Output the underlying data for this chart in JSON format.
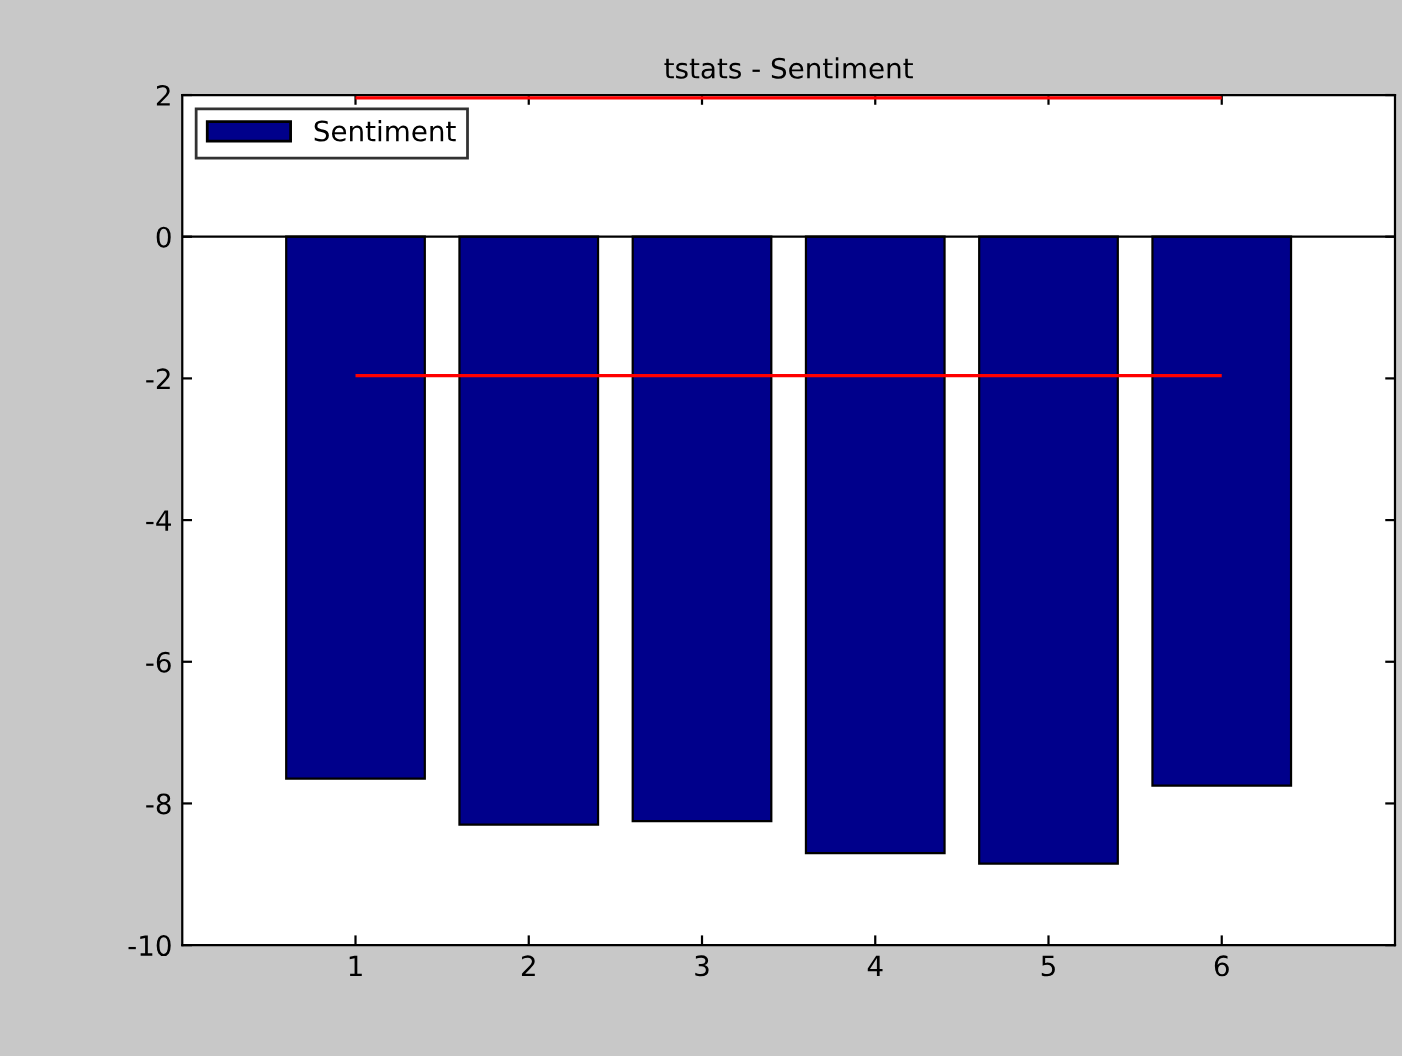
{
  "chart_data": {
    "type": "bar",
    "title": "tstats - Sentiment",
    "x": [
      1,
      2,
      3,
      4,
      5,
      6
    ],
    "series": [
      {
        "name": "Sentiment",
        "color": "#00008b",
        "values": [
          -7.65,
          -8.3,
          -8.25,
          -8.7,
          -8.85,
          -7.75
        ]
      }
    ],
    "xlim": [
      0,
      7
    ],
    "xticks": [
      1,
      2,
      3,
      4,
      5,
      6
    ],
    "ylim": [
      -10,
      2
    ],
    "yticks": [
      -10,
      -8,
      -6,
      -4,
      -2,
      0,
      2
    ],
    "ref_lines": [
      {
        "axis": "y",
        "value": 1.96,
        "color": "#ff0000"
      },
      {
        "axis": "y",
        "value": -1.96,
        "color": "#ff0000"
      }
    ],
    "legend": "top left",
    "grid": false
  }
}
